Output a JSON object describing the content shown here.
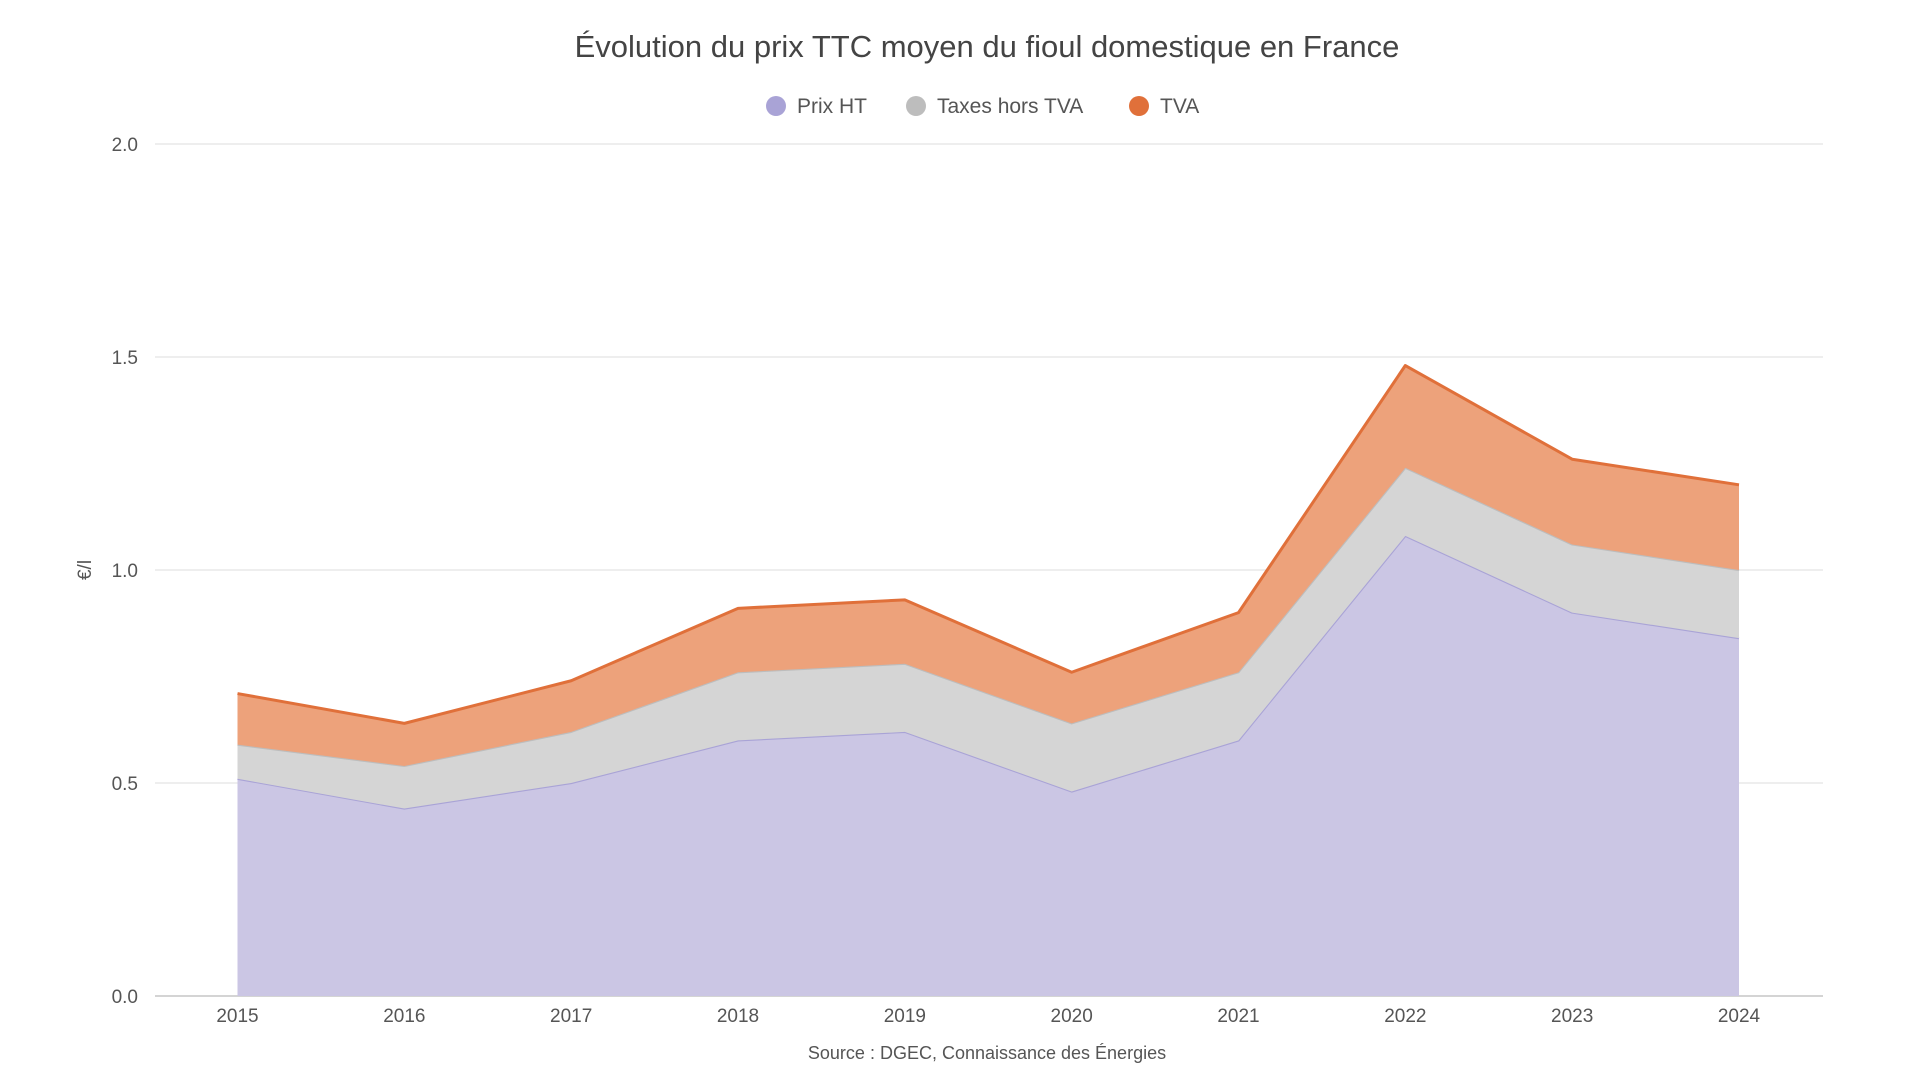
{
  "chart_data": {
    "type": "area",
    "stacked": true,
    "title": "Évolution du prix TTC moyen du fioul domestique en France",
    "ylabel": "€/l",
    "xlabel": "",
    "source": "Source : DGEC, Connaissance des Énergies",
    "ylim": [
      0,
      2.0
    ],
    "yticks": [
      "0.0",
      "0.5",
      "1.0",
      "1.5",
      "2.0"
    ],
    "grid": true,
    "legend_position": "top-center",
    "categories": [
      "2015",
      "2016",
      "2017",
      "2018",
      "2019",
      "2020",
      "2021",
      "2022",
      "2023",
      "2024"
    ],
    "series": [
      {
        "name": "Prix HT",
        "color": "#a9a3d6",
        "fill": "#cbc6e4",
        "values": [
          0.51,
          0.44,
          0.5,
          0.6,
          0.62,
          0.48,
          0.6,
          1.08,
          0.9,
          0.84
        ]
      },
      {
        "name": "Taxes hors TVA",
        "color": "#bdbdbd",
        "fill": "#d5d5d5",
        "values": [
          0.08,
          0.1,
          0.12,
          0.16,
          0.16,
          0.16,
          0.16,
          0.16,
          0.16,
          0.16
        ]
      },
      {
        "name": "TVA",
        "color": "#e0703a",
        "fill": "#eda27b",
        "values": [
          0.12,
          0.1,
          0.12,
          0.15,
          0.15,
          0.12,
          0.14,
          0.24,
          0.2,
          0.2
        ]
      }
    ]
  }
}
